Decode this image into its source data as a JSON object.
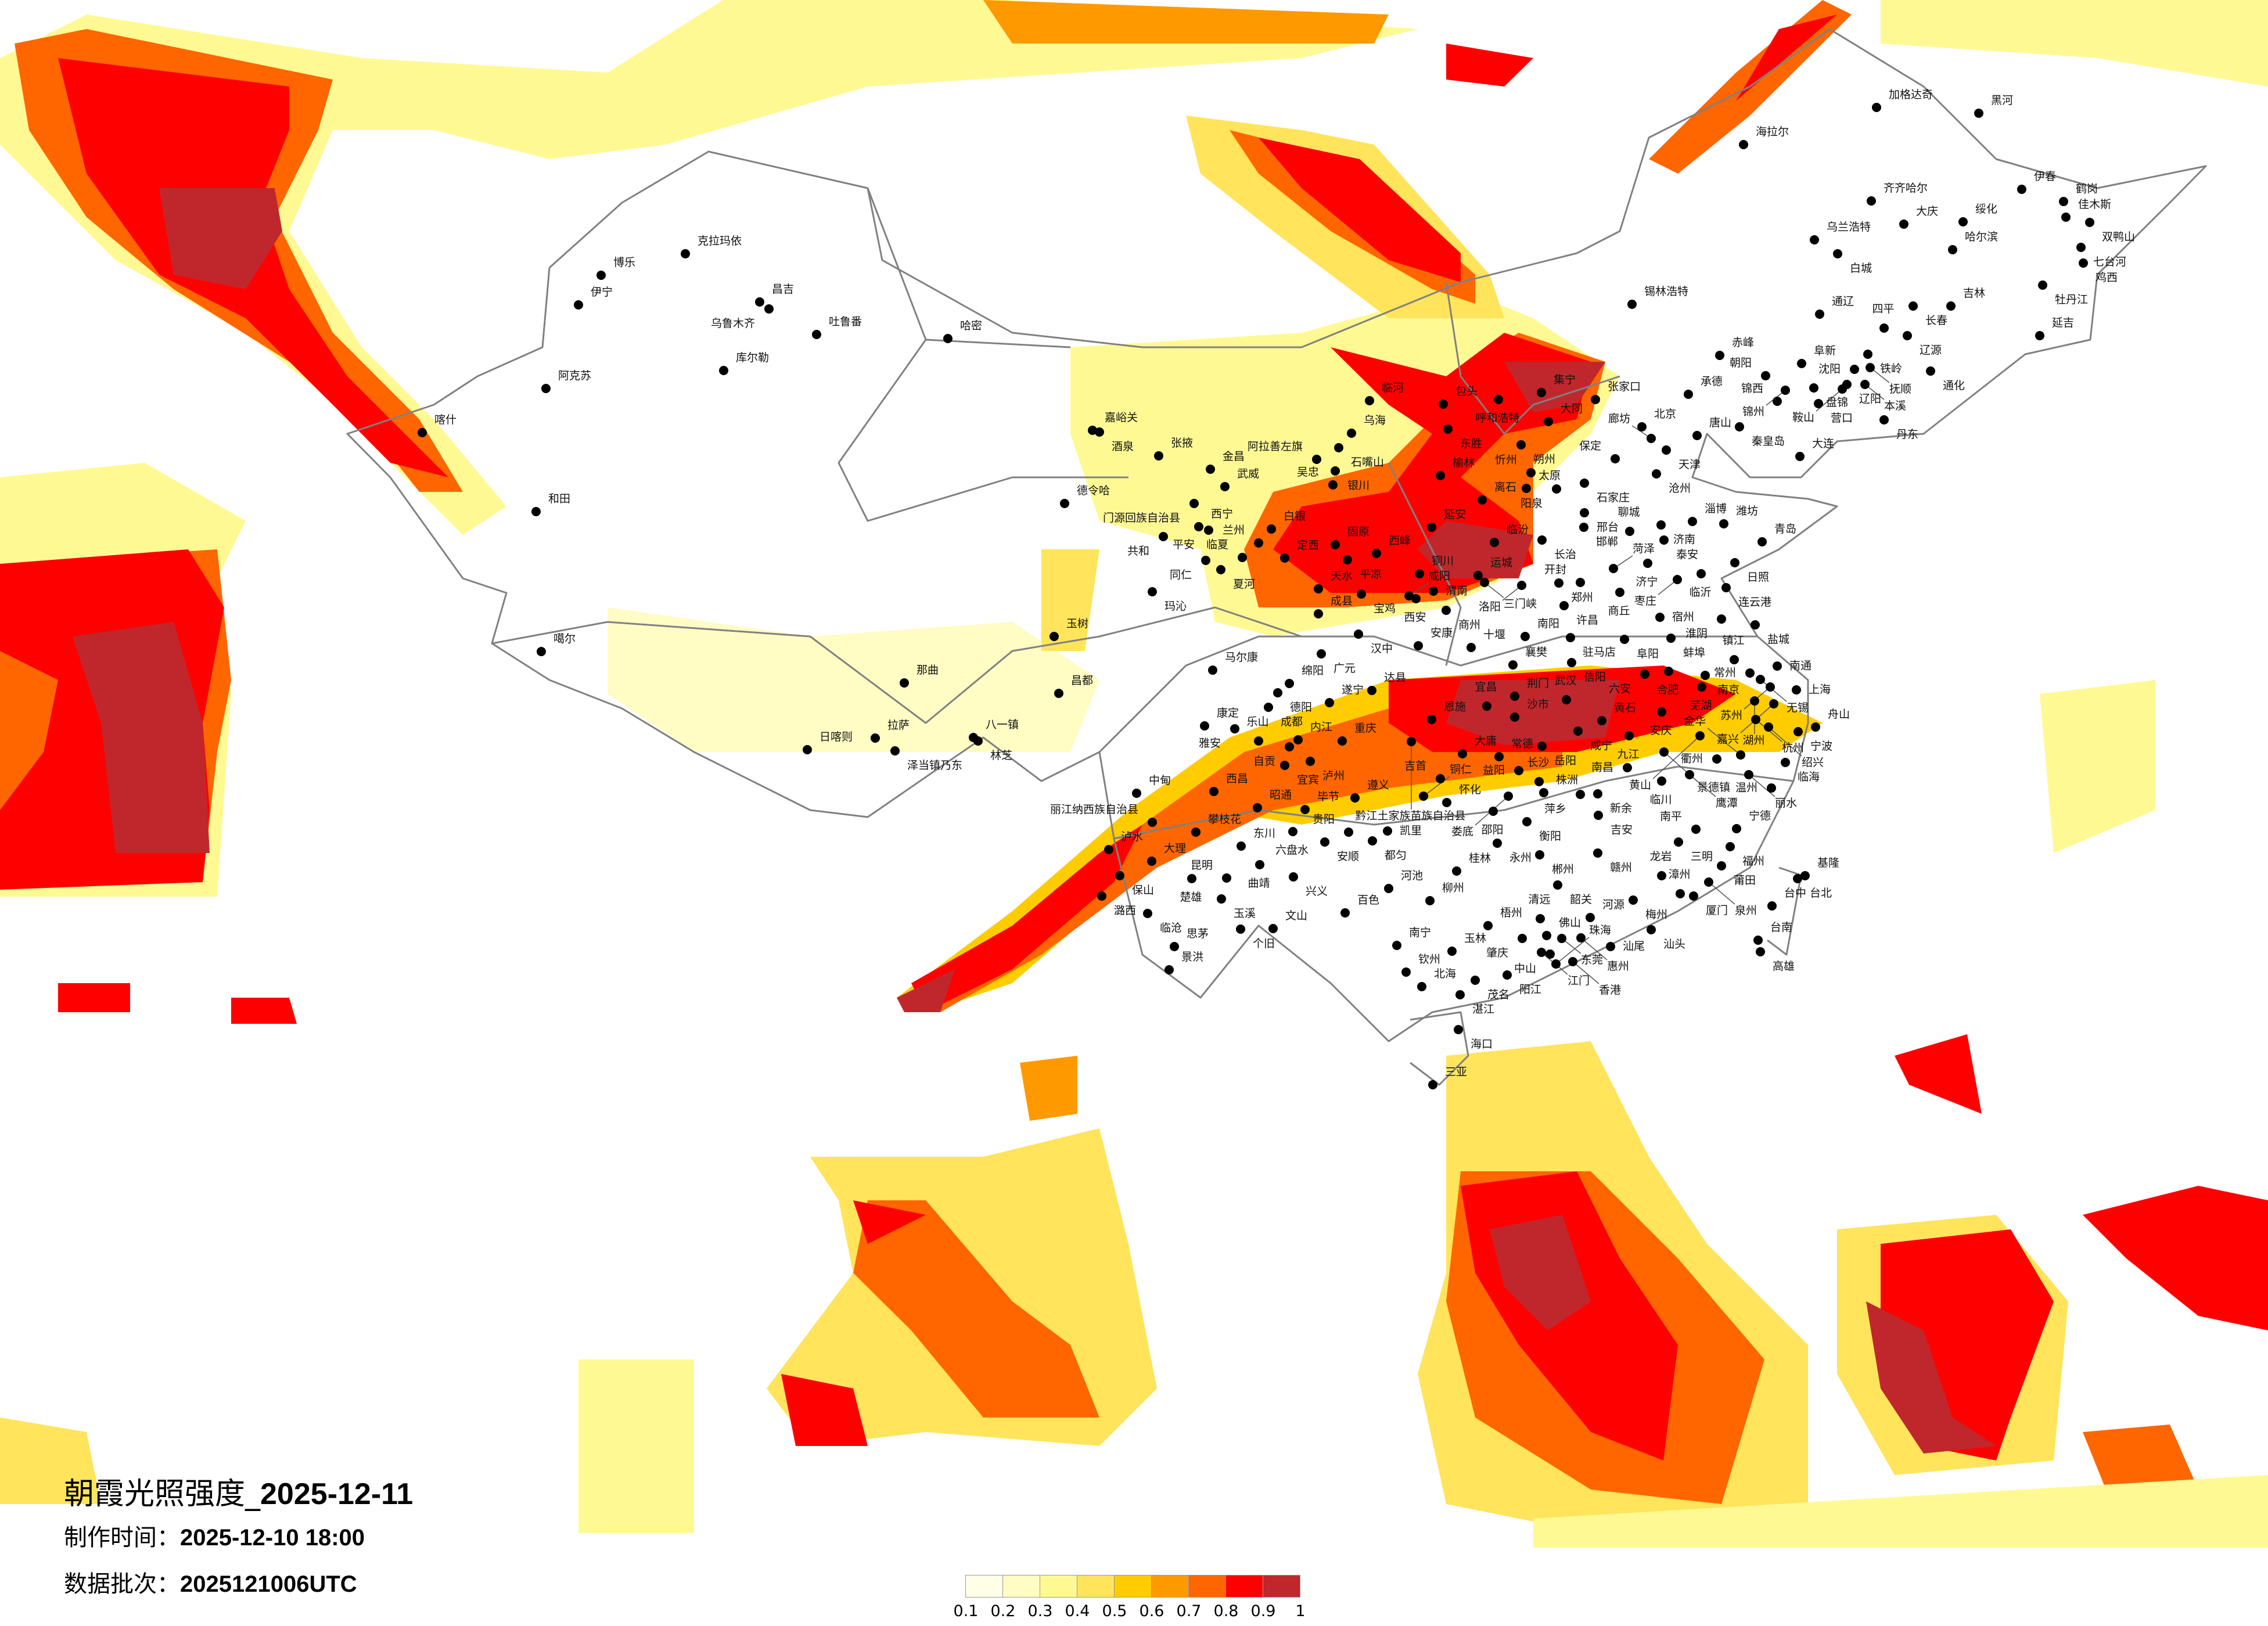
{
  "title": {
    "prefix": "朝霞光照强度_",
    "date": "2025-12-11"
  },
  "made_time": {
    "label": "制作时间：",
    "value": "2025-12-10 18:00"
  },
  "data_batch": {
    "label": "数据批次：",
    "value": "2025121006UTC"
  },
  "legend": {
    "labels": [
      "0.1",
      "0.2",
      "0.3",
      "0.4",
      "0.5",
      "0.6",
      "0.7",
      "0.8",
      "0.9",
      "1"
    ],
    "colors": [
      "#FFFEE6",
      "#FFFCC4",
      "#FFF994",
      "#FFE45C",
      "#FFCC00",
      "#FF9900",
      "#FF6600",
      "#FF0000",
      "#C0272D"
    ]
  },
  "map": {
    "boundary_color": "#808080",
    "city_dot_color": "#000000"
  },
  "cities": [
    "喀什",
    "克拉玛依",
    "博乐",
    "伊宁",
    "昌吉",
    "乌鲁木齐",
    "吐鲁番",
    "哈密",
    "库尔勒",
    "阿克苏",
    "和田",
    "噶尔",
    "那曲",
    "日喀则",
    "拉萨",
    "泽当镇乃东",
    "八一镇",
    "林芝",
    "昌都",
    "玉树",
    "德令哈",
    "嘉峪关",
    "酒泉",
    "张掖",
    "金昌",
    "武威",
    "门源回族自治县",
    "西宁",
    "平安",
    "共和",
    "同仁",
    "夏河",
    "临夏",
    "兰州",
    "白银",
    "定西",
    "玛沁",
    "临河",
    "包头",
    "呼和浩特",
    "集宁",
    "张家口",
    "乌海",
    "石嘴山",
    "阿拉善左旗",
    "银川",
    "吴忠",
    "东胜",
    "大同",
    "朔州",
    "榆林",
    "忻州",
    "太原",
    "阳泉",
    "石家庄",
    "保定",
    "离石",
    "延安",
    "临汾",
    "固原",
    "平凉",
    "西峰",
    "铜川",
    "天水",
    "宝鸡",
    "咸阳",
    "西安",
    "渭南",
    "运城",
    "三门峡",
    "成县",
    "商州",
    "汉中",
    "安康",
    "十堰",
    "广元",
    "马尔康",
    "绵阳",
    "德阳",
    "成都",
    "达县",
    "遂宁",
    "康定",
    "雅安",
    "乐山",
    "自贡",
    "内江",
    "重庆",
    "宜宾",
    "泸州",
    "恩施",
    "宜昌",
    "荆门",
    "襄樊",
    "沙市",
    "黔江土家族苗族自治县",
    "大庸",
    "常德",
    "加格达奇",
    "黑河",
    "海拉尔",
    "伊春",
    "齐齐哈尔",
    "鹤岗",
    "佳木斯",
    "双鸭山",
    "大庆",
    "绥化",
    "乌兰浩特",
    "白城",
    "哈尔滨",
    "七台河",
    "鸡西",
    "牡丹江",
    "锡林浩特",
    "长春",
    "吉林",
    "通辽",
    "四平",
    "辽源",
    "延吉",
    "赤峰",
    "铁岭",
    "阜新",
    "沈阳",
    "抚顺",
    "通化",
    "朝阳",
    "承德",
    "锦州",
    "盘锦",
    "辽阳",
    "鞍山",
    "本溪",
    "锦西",
    "营口",
    "丹东",
    "秦皇岛",
    "北京",
    "廊坊",
    "唐山",
    "天津",
    "大连",
    "沧州",
    "邢台",
    "邯郸",
    "长治",
    "济南",
    "聊城",
    "泰安",
    "淄博",
    "潍坊",
    "青岛",
    "济宁",
    "菏泽",
    "日照",
    "临沂",
    "枣庄",
    "连云港",
    "郑州",
    "开封",
    "洛阳",
    "商丘",
    "许昌",
    "宿州",
    "淮阴",
    "盐城",
    "南阳",
    "驻马店",
    "阜阳",
    "蚌埠",
    "信阳",
    "合肥",
    "六安",
    "南京",
    "镇江",
    "常州",
    "南通",
    "无锡",
    "苏州",
    "上海",
    "芜湖",
    "湖州",
    "嘉兴",
    "杭州",
    "绍兴",
    "宁波",
    "舟山",
    "安庆",
    "武汉",
    "黄石",
    "咸宁",
    "九江",
    "岳阳",
    "黄山",
    "景德镇",
    "衢州",
    "金华",
    "临海",
    "南昌",
    "鹰潭",
    "丽水",
    "益阳",
    "长沙",
    "临川",
    "温州",
    "株洲",
    "萍乡",
    "新余",
    "吉安",
    "衡阳",
    "南平",
    "宁德",
    "三明",
    "福州",
    "赣州",
    "郴州",
    "莆田",
    "中甸",
    "西昌",
    "昭通",
    "毕节",
    "遵义",
    "丽江纳西族自治县",
    "攀枝花",
    "六盘水",
    "贵阳",
    "安顺",
    "都匀",
    "凯里",
    "铜仁",
    "怀化",
    "吉首",
    "邵阳",
    "娄底",
    "永州",
    "泸水",
    "东川",
    "大理",
    "保山",
    "曲靖",
    "楚雄",
    "昆明",
    "兴义",
    "潞西",
    "玉溪",
    "临沧",
    "个旧",
    "文山",
    "思茅",
    "景洪",
    "百色",
    "河池",
    "柳州",
    "桂林",
    "南宁",
    "玉林",
    "梧州",
    "钦州",
    "北海",
    "湛江",
    "茂名",
    "阳江",
    "海口",
    "三亚",
    "韶关",
    "清远",
    "河源",
    "肇庆",
    "佛山",
    "东莞",
    "惠州",
    "江门",
    "中山",
    "珠海",
    "香港",
    "汕尾",
    "梅州",
    "龙岩",
    "漳州",
    "厦门",
    "泉州",
    "汕头",
    "台北",
    "基隆",
    "台中",
    "台南",
    "高雄"
  ]
}
